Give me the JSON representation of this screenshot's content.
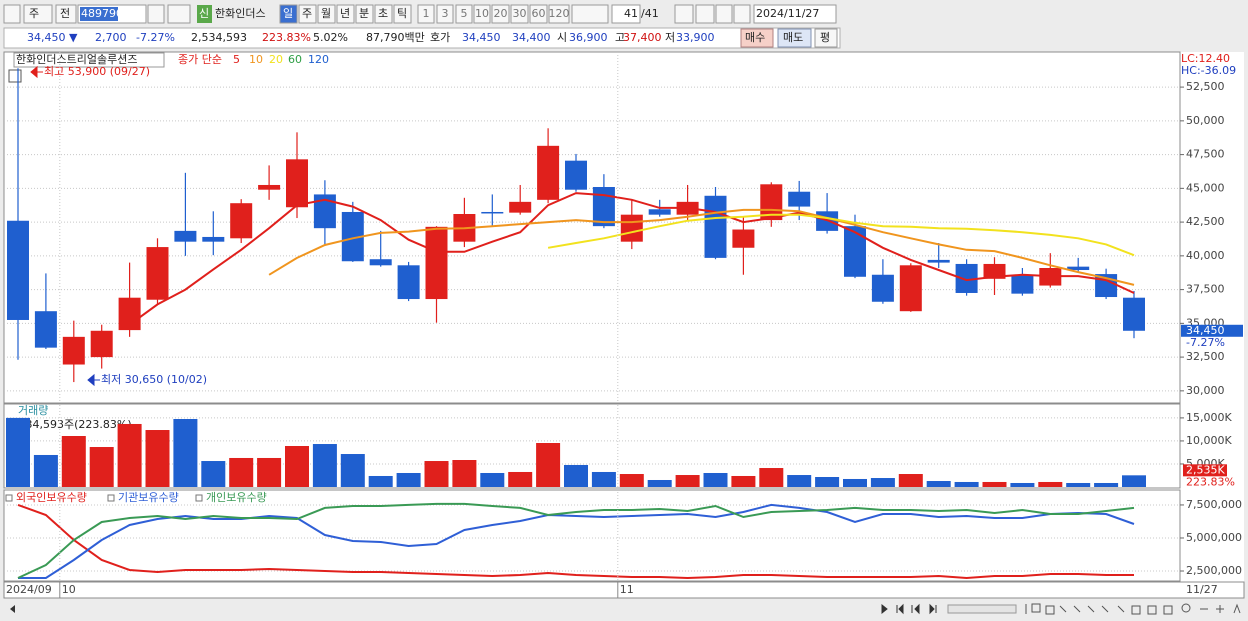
{
  "toolbar": {
    "period_type": "주",
    "scope": "전",
    "code": "489790",
    "badge": "신",
    "name": "한화인더스",
    "periods": [
      "일",
      "주",
      "월",
      "년",
      "분",
      "초",
      "틱"
    ],
    "intervals": [
      "1",
      "3",
      "5",
      "10",
      "20",
      "30",
      "60",
      "120"
    ],
    "count": "41",
    "total": "/41",
    "date": "2024/11/27"
  },
  "quote": {
    "price": "34,450 ▼",
    "change": "2,700",
    "change_pct": "-7.27%",
    "volume": "2,534,593",
    "volume_ratio": "223.83%",
    "turnover_ratio": "5.02%",
    "amount": "87,790백만",
    "ask_label": "호가",
    "ask": "34,450",
    "bid": "34,400",
    "open_label": "시",
    "open": "36,900",
    "high_label": "고",
    "high": "37,400",
    "low_label": "저",
    "low": "33,900",
    "buy": "매수",
    "sell": "매도",
    "avg": "평"
  },
  "chart_data": [
    {
      "type": "candlestick",
      "title": "한화인더스트리얼솔루션즈",
      "ma_label": "종가 단순",
      "open": [
        42600,
        35900,
        31950,
        32500,
        34500,
        36750,
        41850,
        41400,
        41300,
        44900,
        43600,
        44550,
        43250,
        39750,
        39300,
        36800,
        41050,
        43250,
        43200,
        44150,
        47050,
        45100,
        41050,
        43450,
        43050,
        44450,
        40600,
        42650,
        44750,
        43300,
        42200,
        38600,
        35900,
        39700,
        39400,
        38300,
        38600,
        37800,
        39200,
        38650,
        36900
      ],
      "high": [
        53900,
        38700,
        35200,
        34900,
        39500,
        41300,
        46150,
        43300,
        44200,
        46700,
        49150,
        45600,
        44000,
        41850,
        39550,
        42200,
        44300,
        44550,
        45250,
        49450,
        47550,
        46050,
        44150,
        44150,
        45250,
        45100,
        42900,
        45450,
        45550,
        44650,
        43050,
        39750,
        39450,
        40950,
        39750,
        39900,
        39100,
        40200,
        39850,
        39050,
        37400
      ],
      "low": [
        32300,
        33100,
        30650,
        31650,
        34000,
        36450,
        40000,
        40050,
        40950,
        44150,
        42800,
        40750,
        39550,
        39200,
        36650,
        35050,
        40650,
        42150,
        43050,
        43900,
        44750,
        42050,
        40500,
        42900,
        42650,
        39750,
        38600,
        42150,
        42650,
        41650,
        38350,
        36450,
        35850,
        39100,
        37050,
        37100,
        37050,
        37650,
        38800,
        36800,
        33900
      ],
      "close": [
        35250,
        33200,
        34000,
        34450,
        36900,
        40650,
        41050,
        41050,
        43900,
        45250,
        47150,
        42050,
        39600,
        39300,
        36800,
        42150,
        43100,
        43200,
        44000,
        48150,
        44900,
        42200,
        43050,
        43050,
        44000,
        39850,
        41950,
        45300,
        43650,
        41850,
        38450,
        36600,
        39300,
        39500,
        37250,
        39400,
        37200,
        39100,
        38950,
        36950,
        34450
      ],
      "up_color": "#e0201c",
      "down_color": "#1f5fcf",
      "series": [
        {
          "name": "5",
          "color": "#e0201c",
          "values": [
            null,
            null,
            null,
            null,
            34900,
            36400,
            37500,
            39000,
            40450,
            42050,
            43750,
            44150,
            43650,
            42650,
            41200,
            40300,
            40300,
            41050,
            41750,
            43750,
            44650,
            44500,
            44150,
            43550,
            43550,
            43250,
            42500,
            42800,
            43200,
            42650,
            41750,
            40600,
            39700,
            38950,
            38200,
            38450,
            38600,
            38500,
            38500,
            38200,
            37250
          ]
        },
        {
          "name": "10",
          "color": "#f0951e",
          "values": [
            null,
            null,
            null,
            null,
            null,
            null,
            null,
            null,
            null,
            38600,
            39850,
            40800,
            41300,
            41700,
            41800,
            42000,
            42050,
            42200,
            42350,
            42500,
            42650,
            42500,
            42500,
            42650,
            42900,
            43200,
            43400,
            43400,
            43300,
            42800,
            42300,
            41750,
            41300,
            40850,
            40450,
            40350,
            39850,
            39300,
            38800,
            38350,
            37850
          ]
        },
        {
          "name": "20",
          "color": "#f2e21e",
          "values": [
            null,
            null,
            null,
            null,
            null,
            null,
            null,
            null,
            null,
            null,
            null,
            null,
            null,
            null,
            null,
            null,
            null,
            null,
            null,
            40600,
            40950,
            41300,
            41750,
            42200,
            42600,
            42800,
            42900,
            43050,
            43050,
            42800,
            42450,
            42200,
            42150,
            42050,
            42000,
            41900,
            41750,
            41550,
            41300,
            40850,
            40050
          ]
        },
        {
          "name": "60",
          "color": "#2e9e45",
          "values": [
            null,
            null,
            null,
            null,
            null,
            null,
            null,
            null,
            null,
            null,
            null,
            null,
            null,
            null,
            null,
            null,
            null,
            null,
            null,
            null,
            null,
            null,
            null,
            null,
            null,
            null,
            null,
            null,
            null,
            null,
            null,
            null,
            null,
            null,
            null,
            null,
            null,
            null,
            null,
            null,
            null
          ]
        },
        {
          "name": "120",
          "color": "#1f5fcf",
          "values": [
            null,
            null,
            null,
            null,
            null,
            null,
            null,
            null,
            null,
            null,
            null,
            null,
            null,
            null,
            null,
            null,
            null,
            null,
            null,
            null,
            null,
            null,
            null,
            null,
            null,
            null,
            null,
            null,
            null,
            null,
            null,
            null,
            null,
            null,
            null,
            null,
            null,
            null,
            null,
            null,
            null
          ]
        }
      ],
      "ylim": [
        29100,
        55100
      ],
      "yticks": [
        {
          "value": 30000,
          "label": "30,000"
        },
        {
          "value": 32500,
          "label": "32,500"
        },
        {
          "value": 35000,
          "label": "35,000"
        },
        {
          "value": 37500,
          "label": "37,500"
        },
        {
          "value": 40000,
          "label": "40,000"
        },
        {
          "value": 42500,
          "label": "42,500"
        },
        {
          "value": 45000,
          "label": "45,000"
        },
        {
          "value": 47500,
          "label": "47,500"
        },
        {
          "value": 50000,
          "label": "50,000"
        },
        {
          "value": 52500,
          "label": "52,500"
        }
      ],
      "grid": true,
      "annotations": [
        {
          "text": "최고 53,900 (09/27)",
          "color": "#e0201c"
        },
        {
          "text": "최저 30,650 (10/02)",
          "color": "#1f3fbf"
        }
      ],
      "indicators": [
        {
          "text": "LC:12.40",
          "color": "#e0201c"
        },
        {
          "text": "HC:-36.09",
          "color": "#1f3fbf"
        }
      ],
      "last_price": {
        "value": 34450,
        "label": "34,450"
      },
      "last_change": "-7.27%"
    },
    {
      "type": "bar",
      "title": "거래량",
      "subtitle": "2,534,593주(223.83%)",
      "values": [
        15000,
        6950,
        11070,
        8680,
        13680,
        12370,
        14760,
        5640,
        6300,
        6300,
        8900,
        9330,
        7160,
        2390,
        3040,
        5640,
        5860,
        3040,
        3260,
        9550,
        4780,
        3260,
        2820,
        1520,
        2600,
        3040,
        2390,
        4120,
        2600,
        2170,
        1740,
        1950,
        2820,
        1300,
        1090,
        1090,
        870,
        1090,
        870,
        870,
        2535
      ],
      "ylim": [
        0,
        17800
      ],
      "yticks": [
        {
          "value": 5000,
          "label": "5,000K"
        },
        {
          "value": 10000,
          "label": "10,000K"
        },
        {
          "value": 15000,
          "label": "15,000K"
        }
      ],
      "grid": true,
      "last_value": {
        "value": 2535,
        "label": "2,535K"
      },
      "last_change": "223.83%"
    },
    {
      "type": "line",
      "categories": [
        "2024/09",
        null,
        "10",
        null,
        null,
        null,
        null,
        null,
        null,
        null,
        null,
        null,
        null,
        null,
        null,
        null,
        null,
        null,
        null,
        null,
        null,
        null,
        "11",
        null,
        null,
        null,
        null,
        null,
        null,
        null,
        null,
        null,
        null,
        null,
        null,
        null,
        null,
        null,
        null,
        null,
        "11/27"
      ],
      "series": [
        {
          "name": "외국인보유수량",
          "color": "#e0201c",
          "values": [
            7500000,
            6742000,
            4848000,
            3333000,
            2576000,
            2424000,
            2576000,
            2576000,
            2576000,
            2652000,
            2576000,
            2500000,
            2424000,
            2424000,
            2348000,
            2273000,
            2197000,
            2121000,
            2197000,
            2348000,
            2197000,
            2121000,
            2045000,
            2045000,
            1970000,
            2045000,
            2197000,
            2197000,
            2121000,
            2045000,
            2045000,
            2045000,
            2045000,
            2121000,
            1970000,
            2121000,
            2121000,
            2273000,
            2273000,
            2197000,
            2197000
          ]
        },
        {
          "name": "기관보유수량",
          "color": "#2f5fd6",
          "values": [
            1970000,
            1970000,
            3333000,
            4848000,
            5985000,
            6439000,
            6667000,
            6439000,
            6439000,
            6667000,
            6515000,
            5227000,
            4773000,
            4697000,
            4394000,
            4545000,
            5606000,
            5985000,
            6288000,
            6742000,
            6667000,
            6591000,
            6667000,
            6742000,
            6818000,
            6591000,
            6970000,
            7500000,
            7273000,
            6970000,
            6212000,
            6818000,
            6818000,
            6591000,
            6667000,
            6515000,
            6515000,
            6818000,
            6894000,
            6818000,
            6061000
          ]
        },
        {
          "name": "개인보유수량",
          "color": "#3a9a55",
          "values": [
            1970000,
            2955000,
            4848000,
            6212000,
            6515000,
            6667000,
            6439000,
            6667000,
            6515000,
            6515000,
            6439000,
            7273000,
            7424000,
            7424000,
            7500000,
            7576000,
            7576000,
            7424000,
            7273000,
            6742000,
            6970000,
            7121000,
            7121000,
            7197000,
            7045000,
            7424000,
            6591000,
            6970000,
            7045000,
            7121000,
            7273000,
            7121000,
            7121000,
            7045000,
            7121000,
            6894000,
            7121000,
            6818000,
            6818000,
            7045000,
            7273000
          ]
        }
      ],
      "ylim": [
        1820000,
        8480000
      ],
      "yticks": [
        {
          "value": 2500000,
          "label": "2,500,000"
        },
        {
          "value": 5000000,
          "label": "5,000,000"
        },
        {
          "value": 7500000,
          "label": "7,500,000"
        }
      ],
      "grid": true
    }
  ]
}
